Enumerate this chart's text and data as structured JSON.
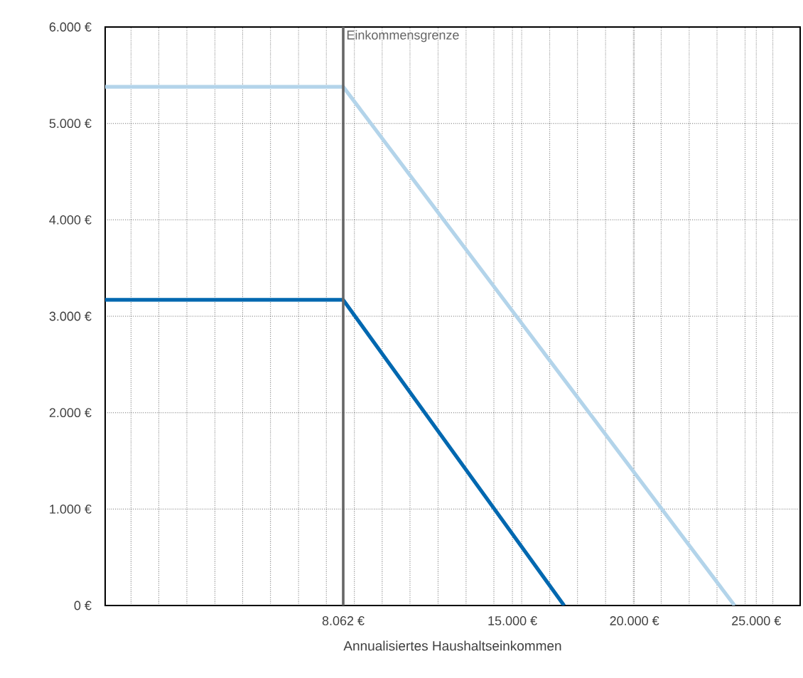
{
  "chart_data": {
    "type": "line",
    "xlabel": "Annualisiertes Haushaltseinkommen",
    "xlim": [
      -1700,
      26800
    ],
    "xticks": [
      {
        "value": -640,
        "label": null
      },
      {
        "value": 500,
        "label": null
      },
      {
        "value": 1650,
        "label": null
      },
      {
        "value": 2800,
        "label": null
      },
      {
        "value": 3940,
        "label": null
      },
      {
        "value": 5080,
        "label": null
      },
      {
        "value": 6230,
        "label": null
      },
      {
        "value": 7370,
        "label": null
      },
      {
        "value": 8062,
        "label": "8.062 €"
      },
      {
        "value": 8520,
        "label": null
      },
      {
        "value": 9660,
        "label": null
      },
      {
        "value": 10800,
        "label": null
      },
      {
        "value": 11950,
        "label": null
      },
      {
        "value": 13100,
        "label": null
      },
      {
        "value": 14240,
        "label": null
      },
      {
        "value": 15000,
        "label": "15.000 €"
      },
      {
        "value": 15380,
        "label": null
      },
      {
        "value": 16530,
        "label": null
      },
      {
        "value": 17670,
        "label": null
      },
      {
        "value": 18820,
        "label": null
      },
      {
        "value": 19960,
        "label": null
      },
      {
        "value": 20000,
        "label": "20.000 €"
      },
      {
        "value": 21100,
        "label": null
      },
      {
        "value": 22250,
        "label": null
      },
      {
        "value": 23390,
        "label": null
      },
      {
        "value": 24540,
        "label": null
      },
      {
        "value": 25000,
        "label": "25.000 €"
      },
      {
        "value": 25680,
        "label": null
      }
    ],
    "ylim": [
      0,
      6000
    ],
    "yticks": [
      {
        "value": 0,
        "label": "0 €"
      },
      {
        "value": 1000,
        "label": "1.000 €"
      },
      {
        "value": 2000,
        "label": "2.000 €"
      },
      {
        "value": 3000,
        "label": "3.000 €"
      },
      {
        "value": 4000,
        "label": "4.000 €"
      },
      {
        "value": 5000,
        "label": "5.000 €"
      },
      {
        "value": 6000,
        "label": "6.000 €"
      }
    ],
    "grid": true,
    "marker": "none",
    "line_style": "solid",
    "series": [
      {
        "color": "#b3d4ea",
        "x": [
          -1700,
          8062,
          24110
        ],
        "values": [
          5380,
          5380,
          0
        ]
      },
      {
        "color": "#0068b0",
        "x": [
          -1700,
          8062,
          17120
        ],
        "values": [
          3170,
          3170,
          0
        ]
      }
    ],
    "ref_lines": [
      {
        "axis": "x",
        "value": 8062,
        "label": "Einkommensgrenze",
        "color": "#666666"
      }
    ]
  }
}
